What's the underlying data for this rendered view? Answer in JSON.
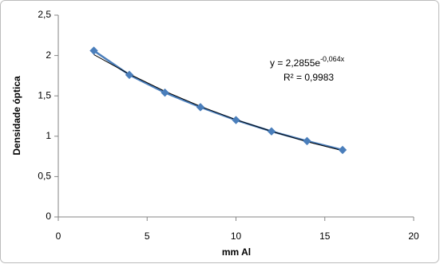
{
  "chart_data": {
    "type": "scatter",
    "x_label": "mm Al",
    "y_label": "Densidade óptica",
    "x": [
      2,
      4,
      6,
      8,
      10,
      12,
      14,
      16
    ],
    "series": [
      {
        "color": "#4a7ebb",
        "values": [
          2.06,
          1.76,
          1.54,
          1.36,
          1.2,
          1.06,
          0.94,
          0.83
        ]
      },
      {
        "color": "#000000",
        "values": [
          2.011,
          1.77,
          1.557,
          1.37,
          1.205,
          1.061,
          0.933,
          0.821
        ]
      }
    ],
    "annotations": {
      "equation": "y = 2,2855e",
      "exponent": "-0,064x",
      "r2": "R² = 0,9983"
    },
    "xlim": [
      0,
      20
    ],
    "xticks": [
      0,
      5,
      10,
      15,
      20
    ],
    "ylim": [
      0,
      2.5
    ],
    "yticks": [
      0,
      {
        "value": 0.5,
        "label": "0,5"
      },
      1,
      {
        "value": 1.5,
        "label": "1,5"
      },
      2,
      {
        "value": 2.5,
        "label": "2,5"
      }
    ],
    "grid": false
  }
}
